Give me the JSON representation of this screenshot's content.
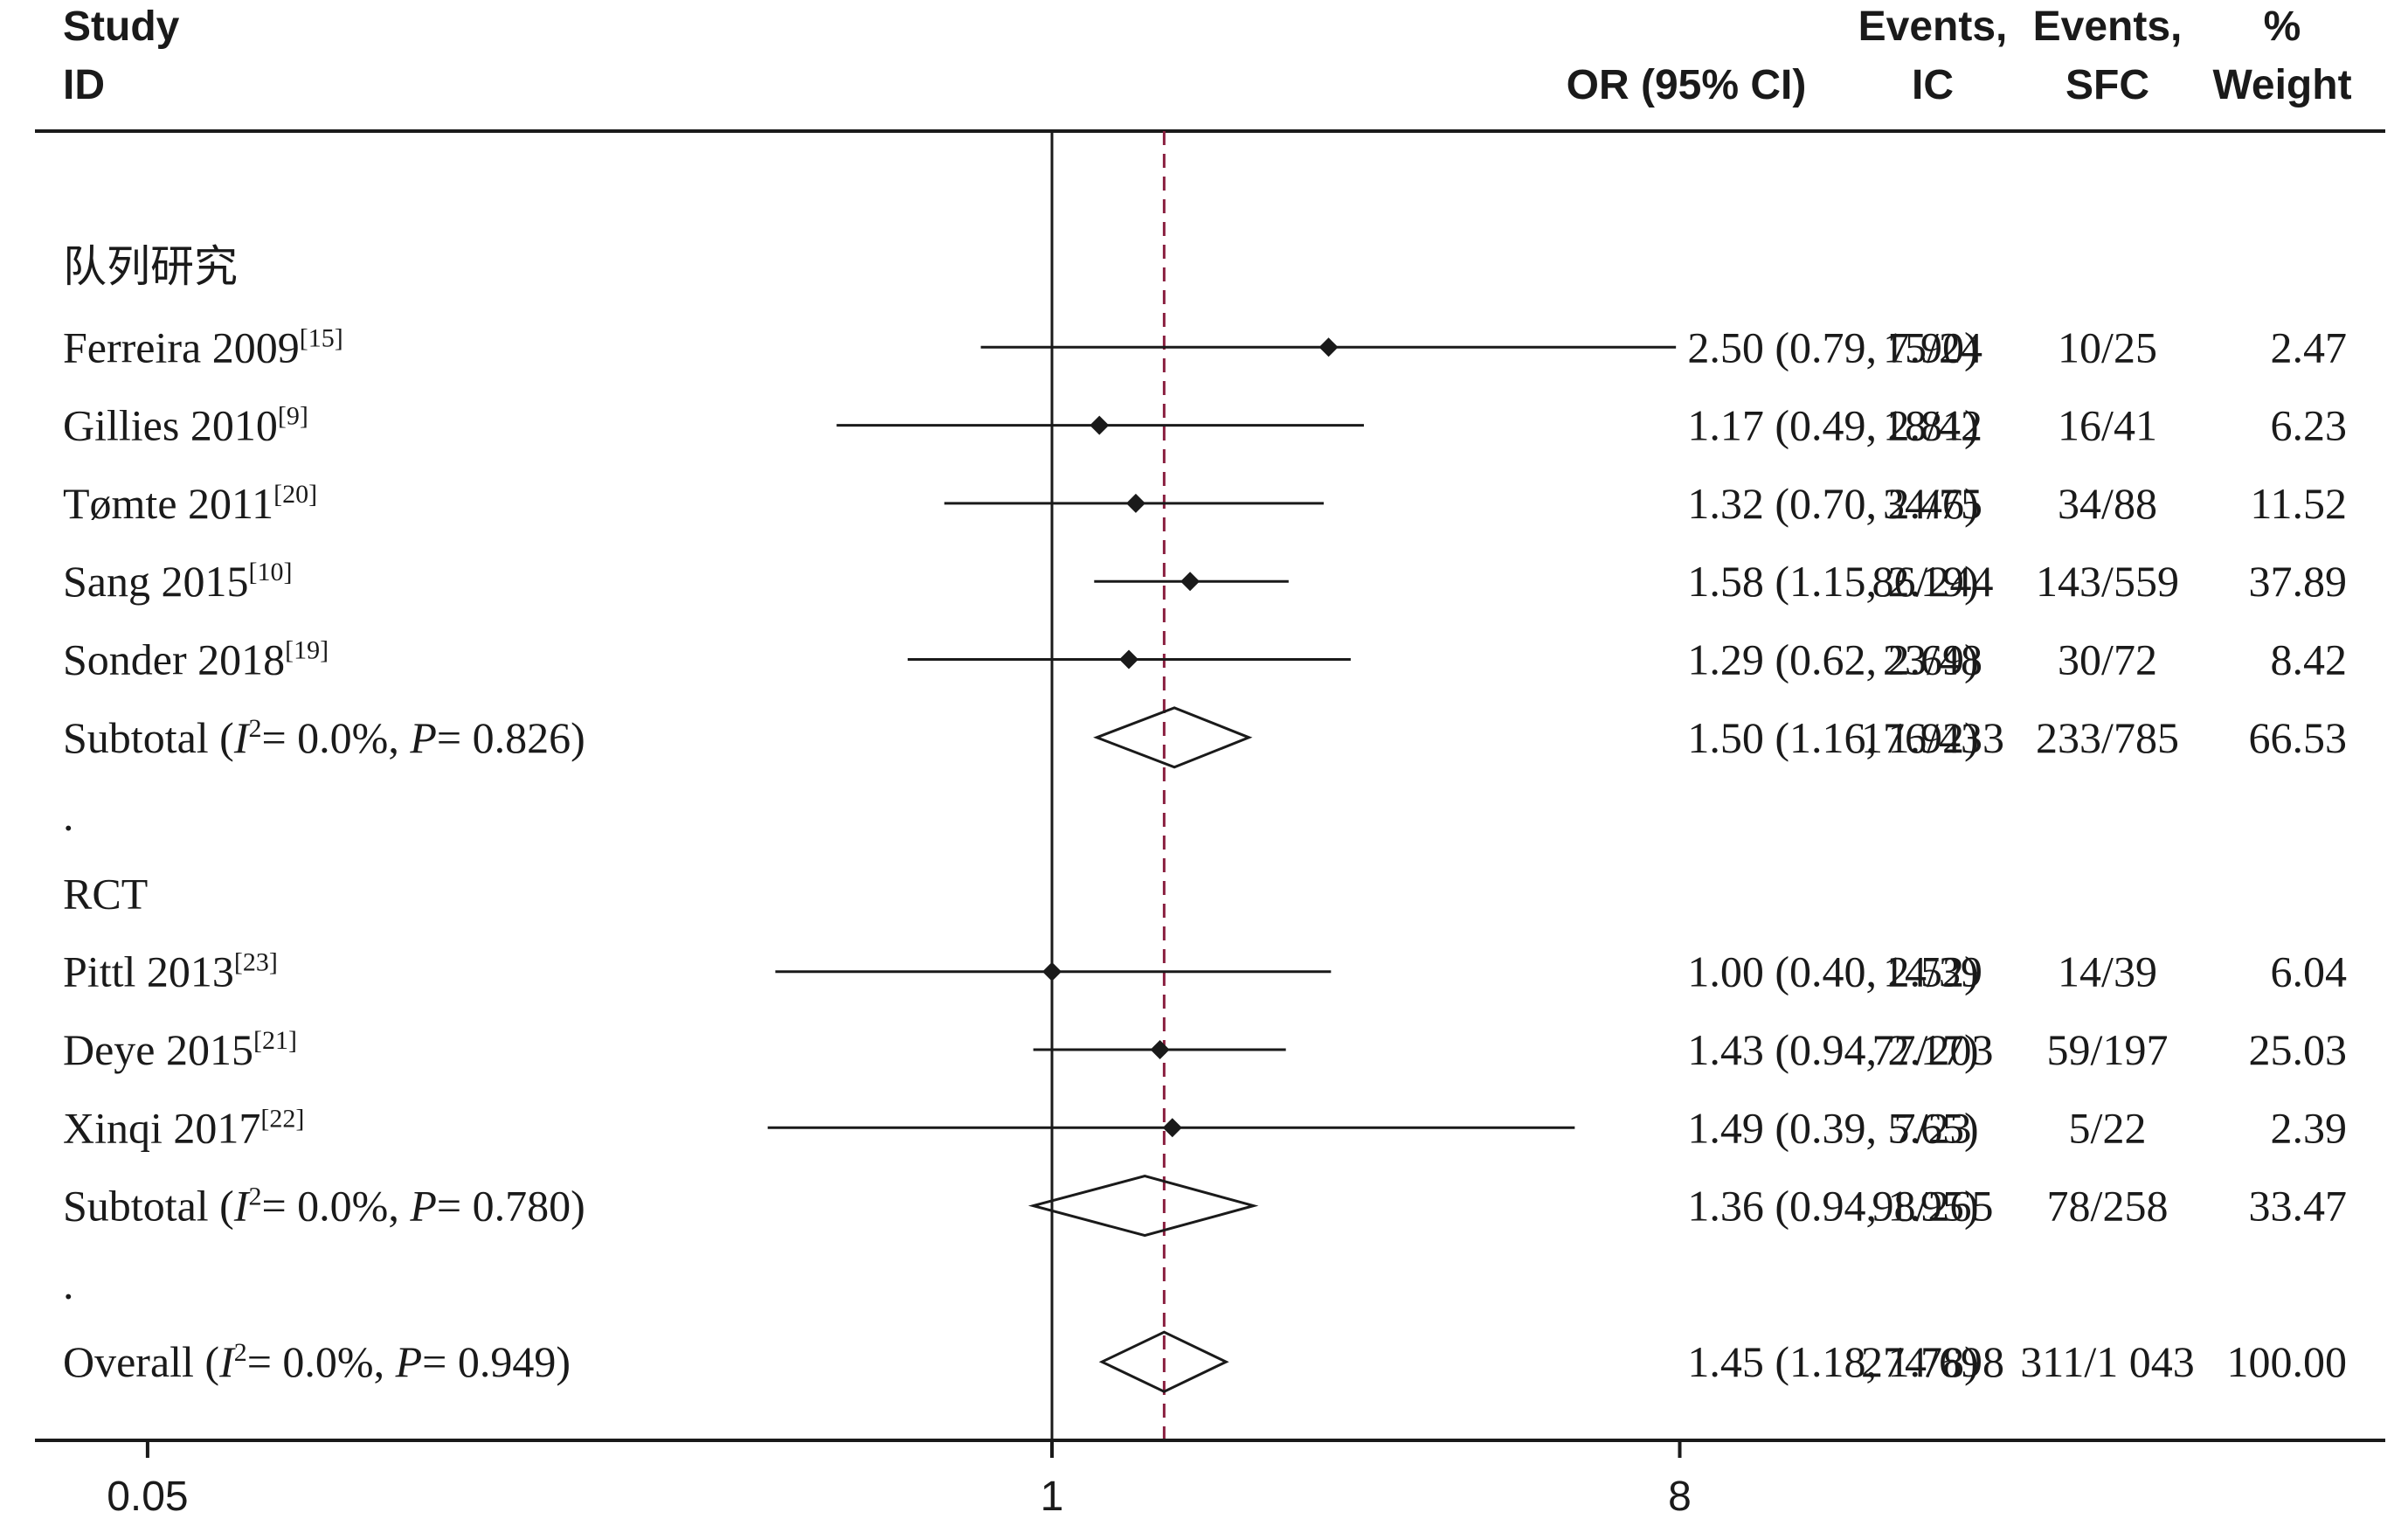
{
  "header": {
    "study_line1": "Study",
    "study_line2": "ID",
    "or_label": "OR (95% CI)",
    "ic_line1": "Events,",
    "ic_line2": "IC",
    "sfc_line1": "Events,",
    "sfc_line2": "SFC",
    "weight_line1": "%",
    "weight_line2": "Weight"
  },
  "colors": {
    "text": "#1a1a1a",
    "pooled_line": "#8a2040",
    "marker": "#1a1a1a"
  },
  "chart_data": {
    "type": "forest",
    "x_scale": "log",
    "xlim": [
      0.05,
      8
    ],
    "x_ticks": [
      "0.05",
      "1",
      "8"
    ],
    "null_line": 1,
    "pooled_line": 1.45,
    "rows": [
      {
        "kind": "group",
        "label": "队列研究"
      },
      {
        "kind": "study",
        "label": "Ferreira 2009",
        "ref": "[15]",
        "or": 2.5,
        "lo": 0.79,
        "hi": 7.9,
        "or_text": "2.50 (0.79, 7.90)",
        "ic": "15/24",
        "sfc": "10/25",
        "weight": "2.47"
      },
      {
        "kind": "study",
        "label": "Gillies 2010",
        "ref": "[9]",
        "or": 1.17,
        "lo": 0.49,
        "hi": 2.81,
        "or_text": "1.17 (0.49, 2.81)",
        "ic": "18/42",
        "sfc": "16/41",
        "weight": "6.23"
      },
      {
        "kind": "study",
        "label": "Tømte 2011",
        "ref": "[20]",
        "or": 1.32,
        "lo": 0.7,
        "hi": 2.46,
        "or_text": "1.32 (0.70, 2.46)",
        "ic": "34/75",
        "sfc": "34/88",
        "weight": "11.52"
      },
      {
        "kind": "study",
        "label": "Sang 2015",
        "ref": "[10]",
        "or": 1.58,
        "lo": 1.15,
        "hi": 2.19,
        "or_text": "1.58 (1.15, 2.19)",
        "ic": "86/244",
        "sfc": "143/559",
        "weight": "37.89"
      },
      {
        "kind": "study",
        "label": "Sonder 2018",
        "ref": "[19]",
        "or": 1.29,
        "lo": 0.62,
        "hi": 2.69,
        "or_text": "1.29 (0.62, 2.69)",
        "ic": "23/48",
        "sfc": "30/72",
        "weight": "8.42"
      },
      {
        "kind": "subtotal",
        "label": "Subtotal",
        "i2": "= 0.0%,",
        "p": "= 0.826)",
        "or": 1.5,
        "lo": 1.16,
        "hi": 1.92,
        "or_text": "1.50 (1.16, 1.92)",
        "ic": "176/433",
        "sfc": "233/785",
        "weight": "66.53"
      },
      {
        "kind": "dot",
        "label": "."
      },
      {
        "kind": "group",
        "label": "RCT"
      },
      {
        "kind": "study",
        "label": "Pittl 2013",
        "ref": "[23]",
        "or": 1.0,
        "lo": 0.4,
        "hi": 2.52,
        "or_text": "1.00 (0.40, 2.52)",
        "ic": "14/39",
        "sfc": "14/39",
        "weight": "6.04"
      },
      {
        "kind": "study",
        "label": "Deye 2015",
        "ref": "[21]",
        "or": 1.43,
        "lo": 0.94,
        "hi": 2.17,
        "or_text": "1.43 (0.94, 2.17)",
        "ic": "77/203",
        "sfc": "59/197",
        "weight": "25.03"
      },
      {
        "kind": "study",
        "label": "Xinqi 2017",
        "ref": "[22]",
        "or": 1.49,
        "lo": 0.39,
        "hi": 5.65,
        "or_text": "1.49 (0.39, 5.65)",
        "ic": "7/23",
        "sfc": "5/22",
        "weight": "2.39"
      },
      {
        "kind": "subtotal",
        "label": "Subtotal",
        "i2": "= 0.0%,",
        "p": "= 0.780)",
        "or": 1.36,
        "lo": 0.94,
        "hi": 1.95,
        "or_text": "1.36 (0.94, 1.95)",
        "ic": "98/265",
        "sfc": "78/258",
        "weight": "33.47"
      },
      {
        "kind": "dot",
        "label": "."
      },
      {
        "kind": "overall",
        "label": "Overall",
        "i2": "= 0.0%,",
        "p": "= 0.949)",
        "or": 1.45,
        "lo": 1.18,
        "hi": 1.78,
        "or_text": "1.45 (1.18, 1.78)",
        "ic": "274/698",
        "sfc": "311/1 043",
        "weight": "100.00"
      }
    ]
  }
}
